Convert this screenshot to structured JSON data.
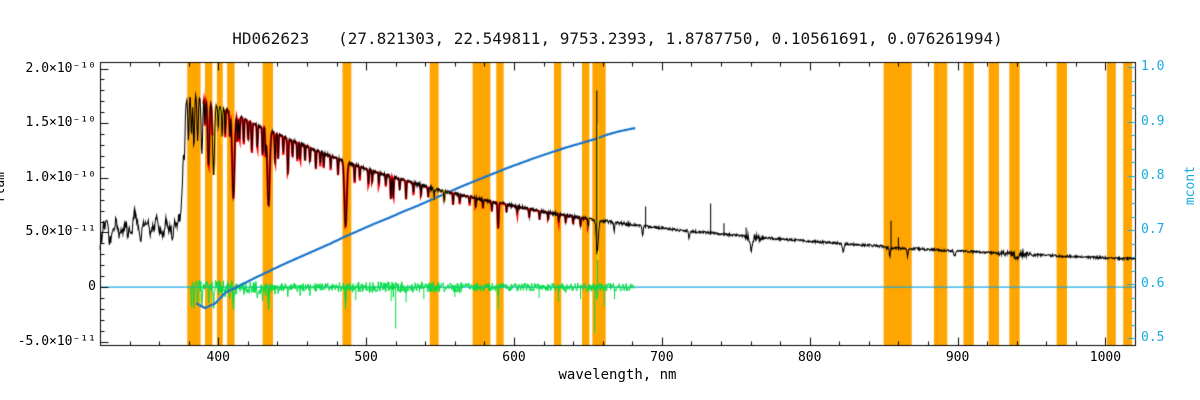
{
  "frame": {
    "axis_color": "#000000",
    "right_axis_color": "#19AADE",
    "background": "#FFFFFF"
  },
  "chart_data": {
    "type": "line",
    "title": "HD062623   (27.821303, 22.549811, 9753.2393, 1.8787750, 0.10561691, 0.076261994)",
    "xlabel": "wavelength, nm",
    "ylabel_left": "flam",
    "ylabel_right": "mcont",
    "xlim": [
      320,
      1020
    ],
    "x_major_ticks": [
      400,
      500,
      600,
      700,
      800,
      900,
      1000
    ],
    "x_minor_step": 20,
    "flux_unit_multiplier": 1e-10,
    "ylim_left_1e10": [
      -0.53,
      2.06
    ],
    "y_left_minor_step": 0.1,
    "y_left_ticks": [
      {
        "value": 2.0,
        "label": "2.0×10⁻¹⁰"
      },
      {
        "value": 1.5,
        "label": "1.5×10⁻¹⁰"
      },
      {
        "value": 1.0,
        "label": "1.0×10⁻¹⁰"
      },
      {
        "value": 0.5,
        "label": "5.0×10⁻¹¹"
      },
      {
        "value": 0.0,
        "label": "0"
      },
      {
        "value": -0.5,
        "label": "-5.0×10⁻¹¹"
      }
    ],
    "ylim_right": [
      0.488,
      1.01
    ],
    "y_right_minor_step": 0.025,
    "y_right_ticks": [
      {
        "value": 1.0,
        "label": "1.0"
      },
      {
        "value": 0.9,
        "label": "0.9"
      },
      {
        "value": 0.8,
        "label": "0.8"
      },
      {
        "value": 0.7,
        "label": "0.7"
      },
      {
        "value": 0.6,
        "label": "0.6"
      },
      {
        "value": 0.5,
        "label": "0.5"
      }
    ],
    "masked_bands_nm": [
      [
        379,
        388
      ],
      [
        391,
        396
      ],
      [
        399,
        403
      ],
      [
        406,
        411
      ],
      [
        430,
        437
      ],
      [
        484,
        490
      ],
      [
        543,
        549
      ],
      [
        572,
        584
      ],
      [
        588,
        593
      ],
      [
        627,
        632
      ],
      [
        646,
        651
      ],
      [
        653,
        662
      ],
      [
        850,
        869
      ],
      [
        884,
        893
      ],
      [
        904,
        911
      ],
      [
        921,
        928
      ],
      [
        935,
        942
      ],
      [
        967,
        974
      ],
      [
        1001,
        1007
      ],
      [
        1012,
        1018
      ]
    ],
    "series": {
      "spectrum": {
        "color": "#000000",
        "anchors_1e10": [
          [
            320,
            0.42
          ],
          [
            324,
            0.55
          ],
          [
            328,
            0.48
          ],
          [
            332,
            0.57
          ],
          [
            336,
            0.5
          ],
          [
            340,
            0.55
          ],
          [
            344,
            0.6
          ],
          [
            348,
            0.53
          ],
          [
            352,
            0.58
          ],
          [
            356,
            0.52
          ],
          [
            360,
            0.57
          ],
          [
            364,
            0.51
          ],
          [
            367,
            0.56
          ],
          [
            370,
            0.53
          ],
          [
            372,
            0.57
          ],
          [
            374,
            0.62
          ],
          [
            375,
            0.8
          ],
          [
            376,
            1.1
          ],
          [
            377,
            1.45
          ],
          [
            378,
            1.65
          ],
          [
            379,
            1.73
          ],
          [
            381,
            1.76
          ],
          [
            383,
            1.77
          ],
          [
            386,
            1.75
          ],
          [
            389,
            1.73
          ],
          [
            392,
            1.71
          ],
          [
            395,
            1.69
          ],
          [
            398,
            1.67
          ],
          [
            401,
            1.65
          ],
          [
            404,
            1.63
          ],
          [
            407,
            1.61
          ],
          [
            410,
            1.59
          ],
          [
            413,
            1.57
          ],
          [
            416,
            1.55
          ],
          [
            419,
            1.53
          ],
          [
            422,
            1.51
          ],
          [
            425,
            1.49
          ],
          [
            428,
            1.47
          ],
          [
            431,
            1.46
          ],
          [
            434,
            1.44
          ],
          [
            437,
            1.42
          ],
          [
            440,
            1.4
          ],
          [
            444,
            1.38
          ],
          [
            448,
            1.35
          ],
          [
            452,
            1.33
          ],
          [
            456,
            1.31
          ],
          [
            460,
            1.29
          ],
          [
            464,
            1.26
          ],
          [
            468,
            1.24
          ],
          [
            472,
            1.22
          ],
          [
            476,
            1.2
          ],
          [
            480,
            1.18
          ],
          [
            484,
            1.16
          ],
          [
            488,
            1.14
          ],
          [
            492,
            1.12
          ],
          [
            496,
            1.1
          ],
          [
            500,
            1.08
          ],
          [
            505,
            1.06
          ],
          [
            510,
            1.04
          ],
          [
            515,
            1.02
          ],
          [
            520,
            1.0
          ],
          [
            525,
            0.98
          ],
          [
            530,
            0.96
          ],
          [
            535,
            0.94
          ],
          [
            540,
            0.92
          ],
          [
            545,
            0.9
          ],
          [
            550,
            0.885
          ],
          [
            555,
            0.87
          ],
          [
            560,
            0.855
          ],
          [
            565,
            0.84
          ],
          [
            570,
            0.825
          ],
          [
            575,
            0.81
          ],
          [
            580,
            0.795
          ],
          [
            585,
            0.78
          ],
          [
            590,
            0.77
          ],
          [
            595,
            0.755
          ],
          [
            600,
            0.74
          ],
          [
            605,
            0.73
          ],
          [
            610,
            0.715
          ],
          [
            615,
            0.7
          ],
          [
            620,
            0.69
          ],
          [
            625,
            0.68
          ],
          [
            630,
            0.665
          ],
          [
            635,
            0.655
          ],
          [
            640,
            0.645
          ],
          [
            645,
            0.635
          ],
          [
            650,
            0.625
          ],
          [
            655,
            0.615
          ],
          [
            660,
            0.605
          ],
          [
            665,
            0.595
          ],
          [
            670,
            0.585
          ],
          [
            675,
            0.578
          ],
          [
            680,
            0.57
          ],
          [
            690,
            0.555
          ],
          [
            700,
            0.54
          ],
          [
            710,
            0.525
          ],
          [
            720,
            0.51
          ],
          [
            730,
            0.5
          ],
          [
            740,
            0.487
          ],
          [
            750,
            0.474
          ],
          [
            760,
            0.462
          ],
          [
            770,
            0.45
          ],
          [
            780,
            0.44
          ],
          [
            790,
            0.43
          ],
          [
            800,
            0.42
          ],
          [
            810,
            0.41
          ],
          [
            820,
            0.4
          ],
          [
            830,
            0.39
          ],
          [
            840,
            0.382
          ],
          [
            848,
            0.375
          ],
          [
            852,
            0.36
          ],
          [
            858,
            0.355
          ],
          [
            865,
            0.352
          ],
          [
            872,
            0.35
          ],
          [
            880,
            0.344
          ],
          [
            890,
            0.337
          ],
          [
            900,
            0.33
          ],
          [
            910,
            0.323
          ],
          [
            920,
            0.316
          ],
          [
            930,
            0.31
          ],
          [
            940,
            0.303
          ],
          [
            950,
            0.297
          ],
          [
            960,
            0.29
          ],
          [
            970,
            0.285
          ],
          [
            980,
            0.279
          ],
          [
            990,
            0.273
          ],
          [
            1000,
            0.268
          ],
          [
            1010,
            0.262
          ],
          [
            1020,
            0.257
          ]
        ]
      },
      "model_fit": {
        "color": "#FF0000",
        "range_nm": [
          390,
          658
        ]
      },
      "continuum_windows": {
        "color": "#FFE000",
        "ranges_nm": [
          [
            396,
            404
          ],
          [
            543,
            556
          ],
          [
            650,
            658
          ]
        ]
      },
      "residuals": {
        "color": "#00DD44",
        "range_nm": [
          381,
          681
        ],
        "spikes_1e10": [
          [
            410.5,
            -0.14
          ],
          [
            434.0,
            -0.16
          ],
          [
            486.1,
            -0.2
          ],
          [
            493.0,
            -0.12
          ],
          [
            516.9,
            -0.13
          ],
          [
            520.0,
            -0.38
          ],
          [
            527.0,
            -0.14
          ],
          [
            539.0,
            -0.11
          ],
          [
            560.0,
            -0.09
          ],
          [
            589.3,
            -0.2
          ],
          [
            617.0,
            -0.1
          ],
          [
            630.0,
            -0.13
          ],
          [
            645.0,
            -0.11
          ],
          [
            654.5,
            -0.42
          ],
          [
            656.5,
            0.3
          ],
          [
            661.0,
            -0.18
          ],
          [
            668.0,
            -0.11
          ]
        ]
      },
      "mcont_curve": {
        "color": "#1874CD",
        "anchors": [
          [
            385,
            0.565
          ],
          [
            391,
            0.556
          ],
          [
            398,
            0.565
          ],
          [
            405,
            0.585
          ],
          [
            415,
            0.598
          ],
          [
            425,
            0.612
          ],
          [
            435,
            0.625
          ],
          [
            445,
            0.638
          ],
          [
            455,
            0.65
          ],
          [
            465,
            0.662
          ],
          [
            475,
            0.674
          ],
          [
            485,
            0.687
          ],
          [
            495,
            0.699
          ],
          [
            505,
            0.711
          ],
          [
            515,
            0.722
          ],
          [
            525,
            0.734
          ],
          [
            535,
            0.745
          ],
          [
            545,
            0.757
          ],
          [
            555,
            0.769
          ],
          [
            565,
            0.781
          ],
          [
            575,
            0.792
          ],
          [
            585,
            0.803
          ],
          [
            595,
            0.814
          ],
          [
            605,
            0.824
          ],
          [
            615,
            0.834
          ],
          [
            625,
            0.843
          ],
          [
            635,
            0.852
          ],
          [
            645,
            0.86
          ],
          [
            655,
            0.868
          ],
          [
            663,
            0.876
          ],
          [
            671,
            0.882
          ],
          [
            678,
            0.886
          ],
          [
            682,
            0.888
          ]
        ]
      },
      "zero_line": {
        "color": "#19AADE",
        "value": 0
      },
      "masked_regions": {
        "color": "#FFA500"
      }
    },
    "absorption_lines": [
      [
        377.1,
        0.3,
        0.5
      ],
      [
        379.8,
        0.42,
        0.55
      ],
      [
        381.9,
        0.38,
        0.55
      ],
      [
        383.5,
        0.48,
        0.6
      ],
      [
        386.0,
        0.42,
        0.6
      ],
      [
        388.9,
        0.52,
        0.7
      ],
      [
        391.0,
        0.24,
        0.4
      ],
      [
        393.4,
        0.6,
        0.8
      ],
      [
        396.8,
        0.65,
        0.9
      ],
      [
        400.0,
        0.22,
        0.4
      ],
      [
        402.6,
        0.28,
        0.4
      ],
      [
        404.7,
        0.26,
        0.4
      ],
      [
        407.8,
        0.22,
        0.4
      ],
      [
        410.2,
        0.78,
        1.1
      ],
      [
        413.0,
        0.24,
        0.4
      ],
      [
        414.4,
        0.22,
        0.4
      ],
      [
        417.2,
        0.24,
        0.4
      ],
      [
        420.2,
        0.18,
        0.4
      ],
      [
        422.7,
        0.28,
        0.45
      ],
      [
        426.4,
        0.22,
        0.4
      ],
      [
        430.0,
        0.26,
        0.45
      ],
      [
        432.0,
        0.24,
        0.4
      ],
      [
        434.0,
        0.7,
        1.1
      ],
      [
        438.4,
        0.28,
        0.45
      ],
      [
        440.5,
        0.22,
        0.4
      ],
      [
        444.0,
        0.17,
        0.35
      ],
      [
        447.1,
        0.32,
        0.5
      ],
      [
        450.2,
        0.15,
        0.35
      ],
      [
        453.5,
        0.17,
        0.35
      ],
      [
        455.4,
        0.16,
        0.35
      ],
      [
        458.7,
        0.14,
        0.35
      ],
      [
        462.0,
        0.13,
        0.35
      ],
      [
        466.0,
        0.17,
        0.35
      ],
      [
        469.0,
        0.13,
        0.3
      ],
      [
        471.3,
        0.14,
        0.3
      ],
      [
        476.0,
        0.13,
        0.3
      ],
      [
        481.0,
        0.15,
        0.35
      ],
      [
        486.1,
        0.6,
        1.1
      ],
      [
        492.2,
        0.17,
        0.35
      ],
      [
        495.7,
        0.13,
        0.3
      ],
      [
        501.6,
        0.15,
        0.35
      ],
      [
        504.1,
        0.11,
        0.3
      ],
      [
        508.6,
        0.13,
        0.3
      ],
      [
        513.3,
        0.11,
        0.3
      ],
      [
        516.7,
        0.21,
        0.4
      ],
      [
        518.4,
        0.19,
        0.4
      ],
      [
        522.7,
        0.1,
        0.3
      ],
      [
        527.0,
        0.17,
        0.35
      ],
      [
        532.0,
        0.11,
        0.3
      ],
      [
        537.1,
        0.1,
        0.3
      ],
      [
        542.0,
        0.09,
        0.3
      ],
      [
        546.0,
        0.09,
        0.3
      ],
      [
        552.8,
        0.1,
        0.3
      ],
      [
        558.8,
        0.11,
        0.3
      ],
      [
        563.3,
        0.09,
        0.3
      ],
      [
        570.0,
        0.08,
        0.3
      ],
      [
        574.1,
        0.08,
        0.3
      ],
      [
        579.0,
        0.08,
        0.3
      ],
      [
        585.0,
        0.09,
        0.3
      ],
      [
        589.3,
        0.24,
        0.5
      ],
      [
        595.0,
        0.07,
        0.3
      ],
      [
        602.2,
        0.07,
        0.3
      ],
      [
        610.3,
        0.08,
        0.3
      ],
      [
        617.3,
        0.08,
        0.3
      ],
      [
        623.1,
        0.07,
        0.3
      ],
      [
        630.2,
        0.07,
        0.3
      ],
      [
        635.0,
        0.07,
        0.3
      ],
      [
        640.0,
        0.07,
        0.3
      ],
      [
        645.0,
        0.08,
        0.3
      ],
      [
        650.1,
        0.09,
        0.3
      ],
      [
        656.3,
        0.28,
        1.0
      ],
      [
        667.8,
        0.09,
        0.35
      ],
      [
        687.0,
        0.09,
        0.5
      ],
      [
        718.5,
        0.07,
        0.5
      ],
      [
        760.5,
        0.11,
        1.2
      ],
      [
        822.7,
        0.07,
        0.8
      ],
      [
        854.2,
        0.09,
        0.5
      ],
      [
        866.2,
        0.07,
        0.5
      ],
      [
        898.0,
        0.05,
        0.8
      ],
      [
        940.0,
        0.05,
        1.5
      ]
    ],
    "emission_spikes_1e10": [
      [
        689,
        0.18
      ],
      [
        733,
        0.27
      ],
      [
        742,
        0.1
      ],
      [
        757,
        0.08
      ],
      [
        855,
        0.25
      ],
      [
        860,
        0.1
      ]
    ],
    "halpha_feature": {
      "wavelength_nm": 656.3,
      "yellow_1e10": [
        0.25,
        1.5
      ],
      "black_1e10": [
        0.3,
        1.8
      ]
    }
  }
}
